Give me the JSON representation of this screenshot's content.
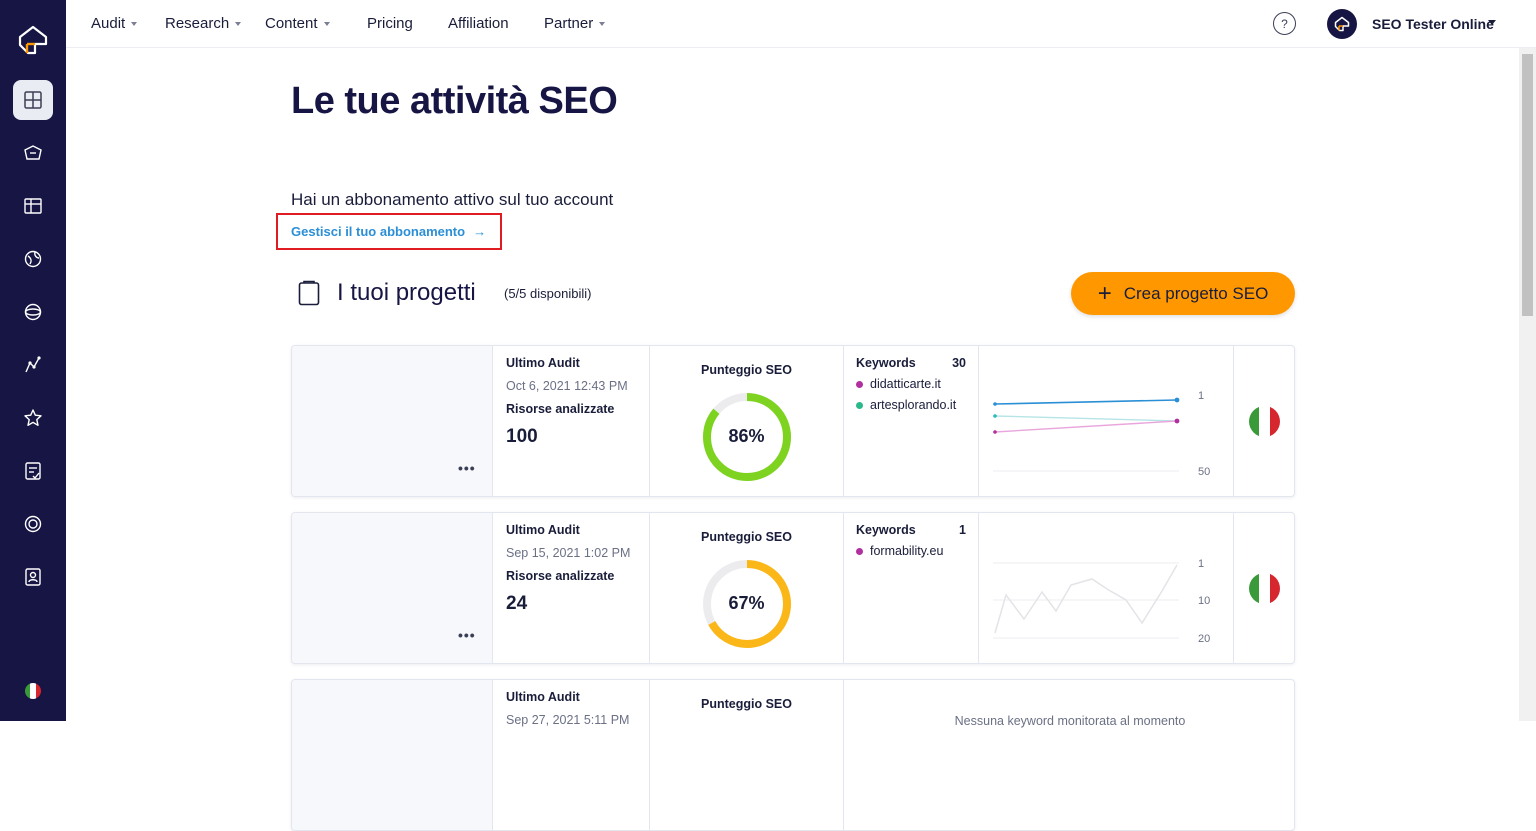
{
  "sidebar": {
    "logo": "seozoom-logo-icon",
    "items": [
      {
        "name": "dashboard-icon",
        "active": true
      },
      {
        "name": "project-icon",
        "active": false
      },
      {
        "name": "table-icon",
        "active": false
      },
      {
        "name": "globe-icon",
        "active": false
      },
      {
        "name": "sphere-icon",
        "active": false
      },
      {
        "name": "analytics-icon",
        "active": false
      },
      {
        "name": "star-icon",
        "active": false
      },
      {
        "name": "checklist-icon",
        "active": false
      },
      {
        "name": "badge-icon",
        "active": false
      },
      {
        "name": "user-card-icon",
        "active": false
      }
    ],
    "flag": "italy-flag-icon"
  },
  "topnav": {
    "items": [
      {
        "label": "Audit",
        "has_caret": true
      },
      {
        "label": "Research",
        "has_caret": true
      },
      {
        "label": "Content",
        "has_caret": true
      },
      {
        "label": "Pricing",
        "has_caret": false
      },
      {
        "label": "Affiliation",
        "has_caret": false
      },
      {
        "label": "Partner",
        "has_caret": true
      }
    ],
    "help": "?",
    "user_name": "SEO Tester Online"
  },
  "main": {
    "title": "Le tue attività SEO",
    "subscription_text": "Hai un abbonamento attivo sul tuo account",
    "manage_link": "Gestisci il tuo abbonamento",
    "projects_title": "I tuoi progetti",
    "projects_count": "(5/5 disponibili)",
    "create_button": "Crea progetto SEO"
  },
  "cards": [
    {
      "audit_label": "Ultimo Audit",
      "audit_date": "Oct 6, 2021 12:43 PM",
      "resources_label": "Risorse analizzate",
      "resources": "100",
      "score_label": "Punteggio SEO",
      "score": 86,
      "score_text": "86%",
      "score_color": "#7ed321",
      "keywords_label": "Keywords",
      "keywords_count": "30",
      "keywords": [
        {
          "domain": "didatticarte.it",
          "color": "#b0309f"
        },
        {
          "domain": "artesplorando.it",
          "color": "#2bb88a"
        }
      ],
      "chart_ticks": [
        "1",
        "50"
      ]
    },
    {
      "audit_label": "Ultimo Audit",
      "audit_date": "Sep 15, 2021 1:02 PM",
      "resources_label": "Risorse analizzate",
      "resources": "24",
      "score_label": "Punteggio SEO",
      "score": 67,
      "score_text": "67%",
      "score_color": "#fbb718",
      "keywords_label": "Keywords",
      "keywords_count": "1",
      "keywords": [
        {
          "domain": "formability.eu",
          "color": "#b0309f"
        }
      ],
      "chart_ticks": [
        "1",
        "10",
        "20"
      ]
    },
    {
      "audit_label": "Ultimo Audit",
      "audit_date": "Sep 27, 2021 5:11 PM",
      "score_label": "Punteggio SEO",
      "empty_message": "Nessuna keyword monitorata al momento"
    }
  ]
}
